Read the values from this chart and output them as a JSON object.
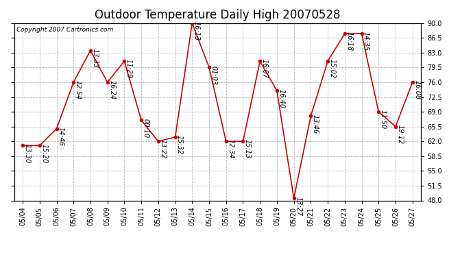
{
  "title": "Outdoor Temperature Daily High 20070528",
  "copyright": "Copyright 2007 Cartronics.com",
  "dates": [
    "05/04",
    "05/05",
    "05/06",
    "05/07",
    "05/08",
    "05/09",
    "05/10",
    "05/11",
    "05/12",
    "05/13",
    "05/14",
    "05/15",
    "05/16",
    "05/17",
    "05/18",
    "05/19",
    "05/20",
    "05/21",
    "05/22",
    "05/23",
    "05/24",
    "05/25",
    "05/26",
    "05/27"
  ],
  "times": [
    "13:30",
    "15:20",
    "14:46",
    "12:54",
    "13:33",
    "16:24",
    "11:29",
    "00:10",
    "13:22",
    "15:32",
    "16:13",
    "01:03",
    "12:34",
    "15:13",
    "16:07",
    "16:40",
    "13:27",
    "13:46",
    "15:02",
    "16:18",
    "14:35",
    "11:50",
    "19:12",
    "16:08"
  ],
  "values": [
    61.0,
    61.0,
    65.0,
    76.0,
    83.5,
    76.0,
    81.0,
    67.0,
    62.0,
    63.0,
    90.0,
    79.5,
    62.0,
    62.0,
    81.0,
    74.0,
    48.5,
    68.0,
    81.0,
    87.5,
    87.5,
    69.0,
    65.5,
    76.0
  ],
  "line_color": "#cc0000",
  "marker_color": "#cc0000",
  "bg_color": "#ffffff",
  "grid_color": "#bbbbbb",
  "ylim_min": 48.0,
  "ylim_max": 90.0,
  "yticks": [
    48.0,
    51.5,
    55.0,
    58.5,
    62.0,
    65.5,
    69.0,
    72.5,
    76.0,
    79.5,
    83.0,
    86.5,
    90.0
  ],
  "title_fontsize": 12,
  "label_fontsize": 7,
  "copyright_fontsize": 6.5,
  "xtick_fontsize": 7,
  "ytick_fontsize": 7
}
